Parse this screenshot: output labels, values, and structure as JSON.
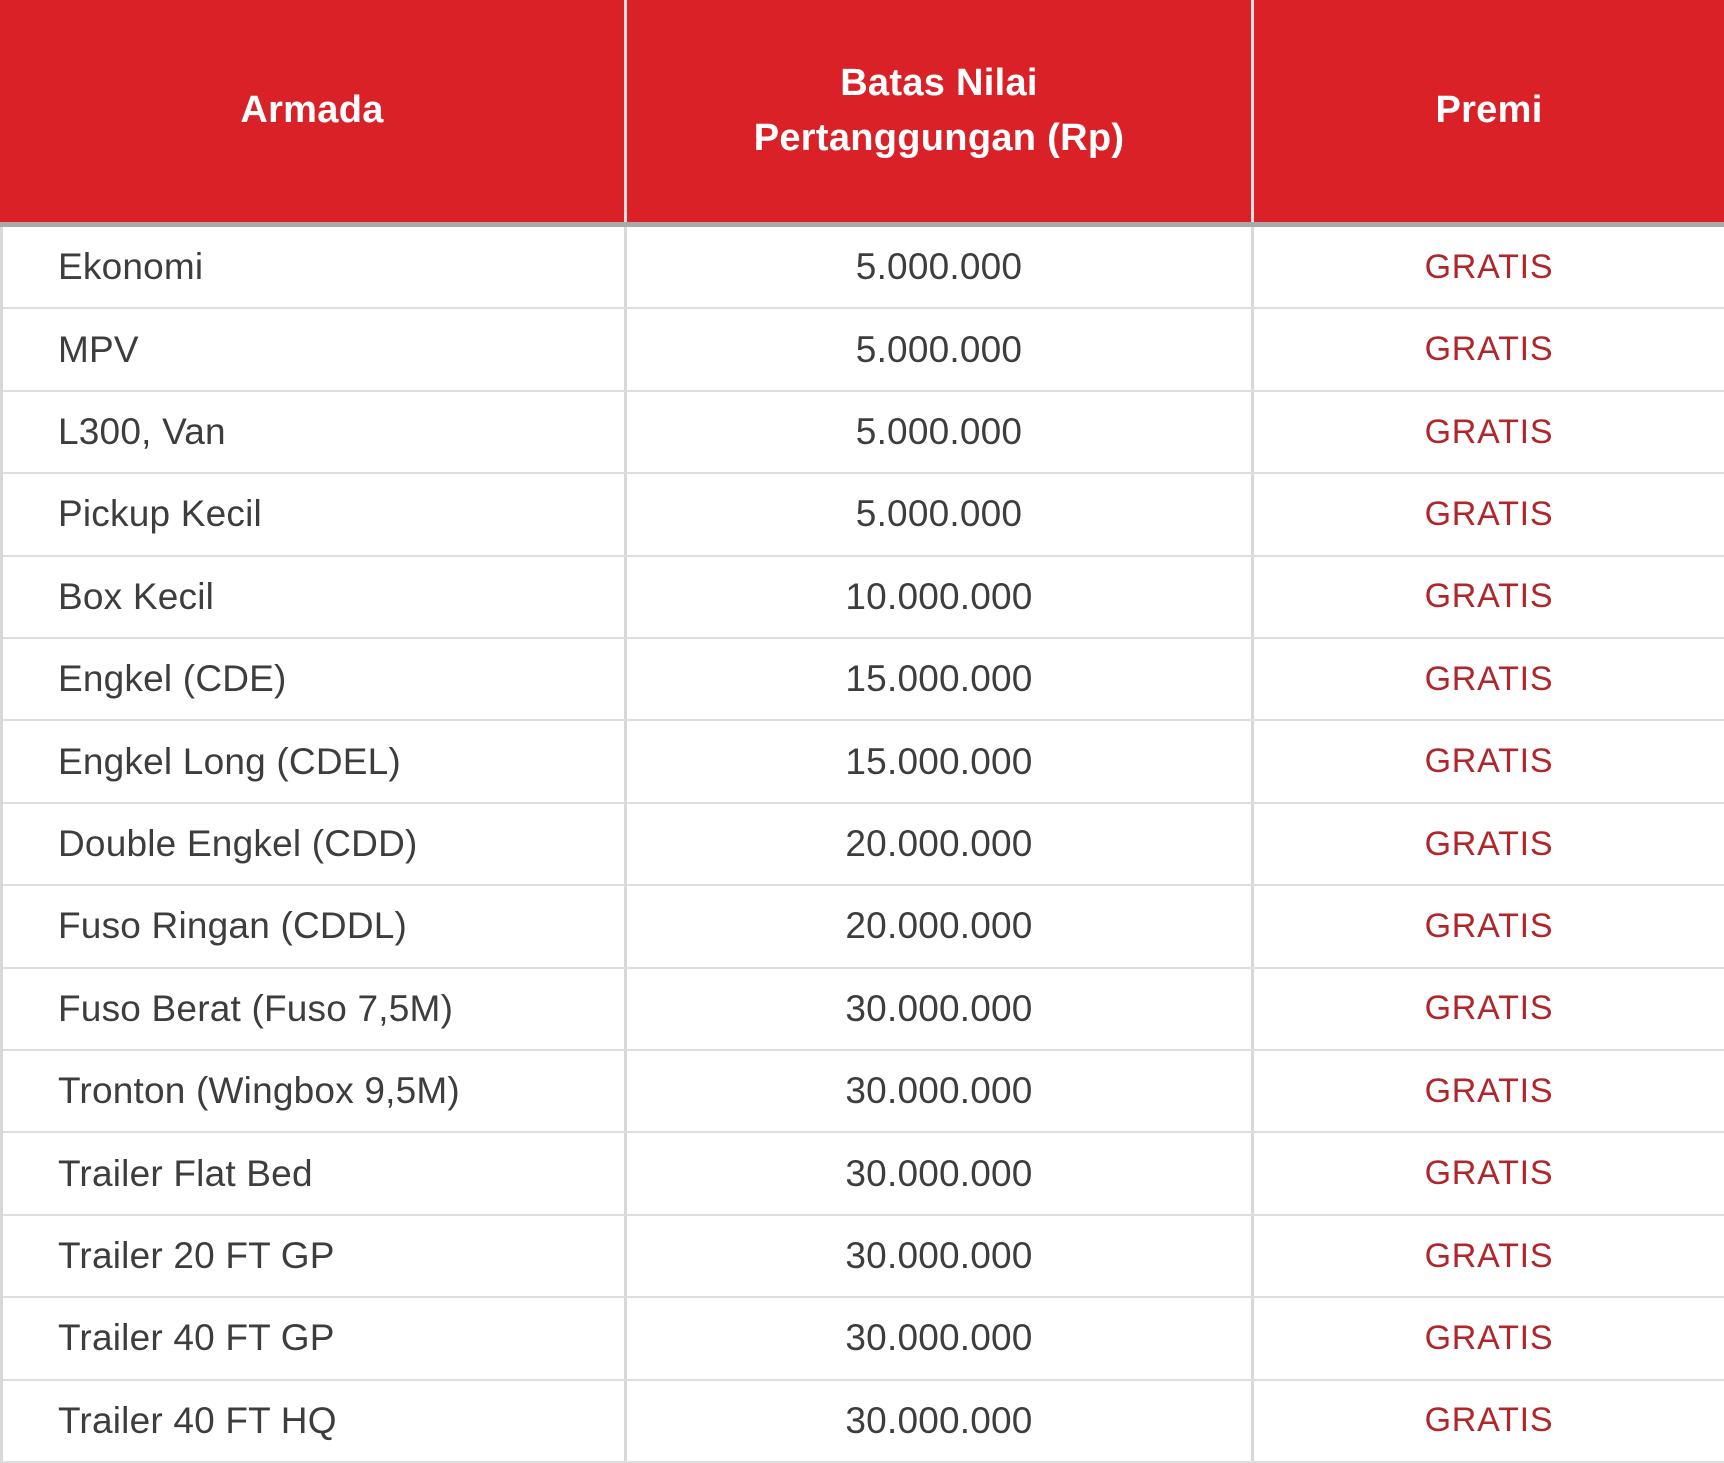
{
  "colors": {
    "header_background": "#DA2128",
    "header_text": "#FFFFFF",
    "body_text": "#3D3D3D",
    "premi_text": "#B0262B",
    "row_border": "#DEDEDE",
    "column_border": "#D8D8D8",
    "header_underline": "#A9A9A9"
  },
  "table": {
    "headers": {
      "armada": "Armada",
      "batas": "Batas Nilai\nPertanggungan (Rp)",
      "premi": "Premi"
    },
    "rows": [
      {
        "armada": "Ekonomi",
        "batas": "5.000.000",
        "premi": "GRATIS"
      },
      {
        "armada": "MPV",
        "batas": "5.000.000",
        "premi": "GRATIS"
      },
      {
        "armada": "L300, Van",
        "batas": "5.000.000",
        "premi": "GRATIS"
      },
      {
        "armada": "Pickup Kecil",
        "batas": "5.000.000",
        "premi": "GRATIS"
      },
      {
        "armada": "Box Kecil",
        "batas": "10.000.000",
        "premi": "GRATIS"
      },
      {
        "armada": "Engkel (CDE)",
        "batas": "15.000.000",
        "premi": "GRATIS"
      },
      {
        "armada": "Engkel Long (CDEL)",
        "batas": "15.000.000",
        "premi": "GRATIS"
      },
      {
        "armada": "Double Engkel (CDD)",
        "batas": "20.000.000",
        "premi": "GRATIS"
      },
      {
        "armada": "Fuso Ringan (CDDL)",
        "batas": "20.000.000",
        "premi": "GRATIS"
      },
      {
        "armada": "Fuso Berat (Fuso 7,5M)",
        "batas": "30.000.000",
        "premi": "GRATIS"
      },
      {
        "armada": "Tronton (Wingbox 9,5M)",
        "batas": "30.000.000",
        "premi": "GRATIS"
      },
      {
        "armada": "Trailer Flat Bed",
        "batas": "30.000.000",
        "premi": "GRATIS"
      },
      {
        "armada": "Trailer 20 FT GP",
        "batas": "30.000.000",
        "premi": "GRATIS"
      },
      {
        "armada": "Trailer 40 FT GP",
        "batas": "30.000.000",
        "premi": "GRATIS"
      },
      {
        "armada": "Trailer 40 FT HQ",
        "batas": "30.000.000",
        "premi": "GRATIS"
      }
    ]
  },
  "chart_data": {
    "type": "table",
    "title": "",
    "columns": [
      "Armada",
      "Batas Nilai Pertanggungan (Rp)",
      "Premi"
    ],
    "rows": [
      [
        "Ekonomi",
        "5.000.000",
        "GRATIS"
      ],
      [
        "MPV",
        "5.000.000",
        "GRATIS"
      ],
      [
        "L300, Van",
        "5.000.000",
        "GRATIS"
      ],
      [
        "Pickup Kecil",
        "5.000.000",
        "GRATIS"
      ],
      [
        "Box Kecil",
        "10.000.000",
        "GRATIS"
      ],
      [
        "Engkel (CDE)",
        "15.000.000",
        "GRATIS"
      ],
      [
        "Engkel Long (CDEL)",
        "15.000.000",
        "GRATIS"
      ],
      [
        "Double Engkel (CDD)",
        "20.000.000",
        "GRATIS"
      ],
      [
        "Fuso Ringan (CDDL)",
        "20.000.000",
        "GRATIS"
      ],
      [
        "Fuso Berat (Fuso 7,5M)",
        "30.000.000",
        "GRATIS"
      ],
      [
        "Tronton (Wingbox 9,5M)",
        "30.000.000",
        "GRATIS"
      ],
      [
        "Trailer Flat Bed",
        "30.000.000",
        "GRATIS"
      ],
      [
        "Trailer 20 FT GP",
        "30.000.000",
        "GRATIS"
      ],
      [
        "Trailer 40 FT GP",
        "30.000.000",
        "GRATIS"
      ],
      [
        "Trailer 40 FT HQ",
        "30.000.000",
        "GRATIS"
      ]
    ]
  }
}
